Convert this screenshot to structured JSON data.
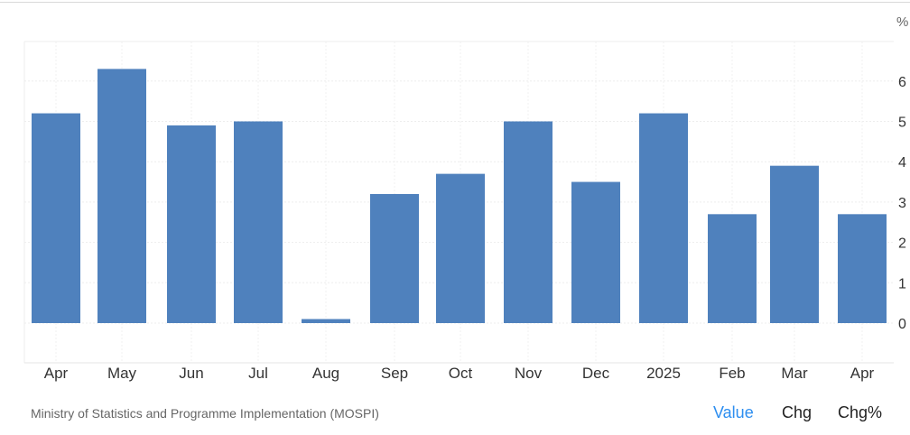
{
  "chart_data": {
    "type": "bar",
    "categories": [
      "Apr",
      "May",
      "Jun",
      "Jul",
      "Aug",
      "Sep",
      "Oct",
      "Nov",
      "Dec",
      "2025",
      "Feb",
      "Mar",
      "Apr"
    ],
    "values": [
      5.2,
      6.3,
      4.9,
      5.0,
      0.1,
      3.2,
      3.7,
      5.0,
      3.5,
      5.2,
      2.7,
      3.9,
      2.7
    ],
    "unit": "%",
    "yticks": [
      0,
      1,
      2,
      3,
      4,
      5,
      6
    ],
    "ylim": [
      -0.65,
      7
    ],
    "grid": true,
    "bar_color": "#4f81bd"
  },
  "footer": {
    "source": "Ministry of Statistics and Programme Implementation (MOSPI)",
    "tabs": [
      {
        "label": "Value",
        "active": true
      },
      {
        "label": "Chg",
        "active": false
      },
      {
        "label": "Chg%",
        "active": false
      }
    ]
  },
  "colors": {
    "accent": "#2d8ef0",
    "grid": "#e6e6e6",
    "text": "#333333"
  }
}
